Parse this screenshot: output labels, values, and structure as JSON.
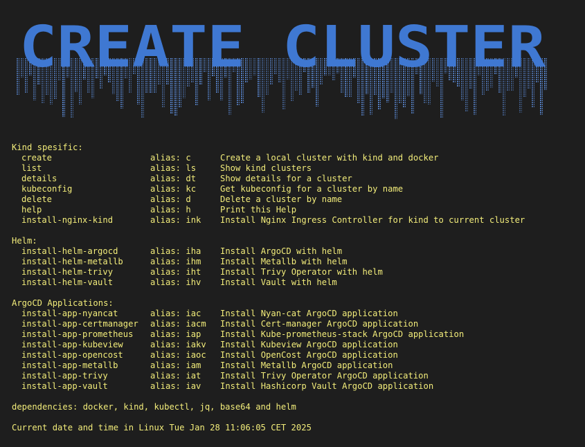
{
  "banner": {
    "text": "CREATE CLUSTER",
    "color": "#3f78d2"
  },
  "colors": {
    "background": "#1e1e1e",
    "text": "#f2ec7a",
    "banner": "#3f78d2"
  },
  "sections": [
    {
      "title": "Kind spesific:",
      "commands": [
        {
          "name": "create",
          "alias": "alias: c",
          "desc": "Create a local cluster with kind and docker"
        },
        {
          "name": "list",
          "alias": "alias: ls",
          "desc": "Show kind clusters"
        },
        {
          "name": "details",
          "alias": "alias: dt",
          "desc": "Show details for a cluster"
        },
        {
          "name": "kubeconfig",
          "alias": "alias: kc",
          "desc": "Get kubeconfig for a cluster by name"
        },
        {
          "name": "delete",
          "alias": "alias: d",
          "desc": "Delete a cluster by name"
        },
        {
          "name": "help",
          "alias": "alias: h",
          "desc": "Print this Help"
        },
        {
          "name": "install-nginx-kind",
          "alias": "alias: ink",
          "desc": "Install Nginx Ingress Controller for kind to current cluster"
        }
      ]
    },
    {
      "title": "Helm:",
      "commands": [
        {
          "name": "install-helm-argocd",
          "alias": "alias: iha",
          "desc": "Install ArgoCD with helm"
        },
        {
          "name": "install-helm-metallb",
          "alias": "alias: ihm",
          "desc": "Install Metallb with helm"
        },
        {
          "name": "install-helm-trivy",
          "alias": "alias: iht",
          "desc": "Install Trivy Operator with helm"
        },
        {
          "name": "install-helm-vault",
          "alias": "alias: ihv",
          "desc": "Install Vault with helm"
        }
      ]
    },
    {
      "title": "ArgoCD Applications:",
      "commands": [
        {
          "name": "install-app-nyancat",
          "alias": "alias: iac",
          "desc": "Install Nyan-cat ArgoCD application"
        },
        {
          "name": "install-app-certmanager",
          "alias": "alias: iacm",
          "desc": "Install Cert-manager ArgoCD application"
        },
        {
          "name": "install-app-prometheus",
          "alias": "alias: iap",
          "desc": "Install Kube-prometheus-stack ArgoCD application"
        },
        {
          "name": "install-app-kubeview",
          "alias": "alias: iakv",
          "desc": "Install Kubeview ArgoCD application"
        },
        {
          "name": "install-app-opencost",
          "alias": "alias: iaoc",
          "desc": "Install OpenCost ArgoCD application"
        },
        {
          "name": "install-app-metallb",
          "alias": "alias: iam",
          "desc": "Install Metallb ArgoCD application"
        },
        {
          "name": "install-app-trivy",
          "alias": "alias: iat",
          "desc": "Install Trivy Operator ArgoCD application"
        },
        {
          "name": "install-app-vault",
          "alias": "alias: iav",
          "desc": "Install Hashicorp Vault ArgoCD application"
        }
      ]
    }
  ],
  "dependencies": "dependencies: docker, kind, kubectl, jq, base64 and helm",
  "datetime": "Current date and time in Linux Tue Jan 28 11:06:05 CET 2025"
}
